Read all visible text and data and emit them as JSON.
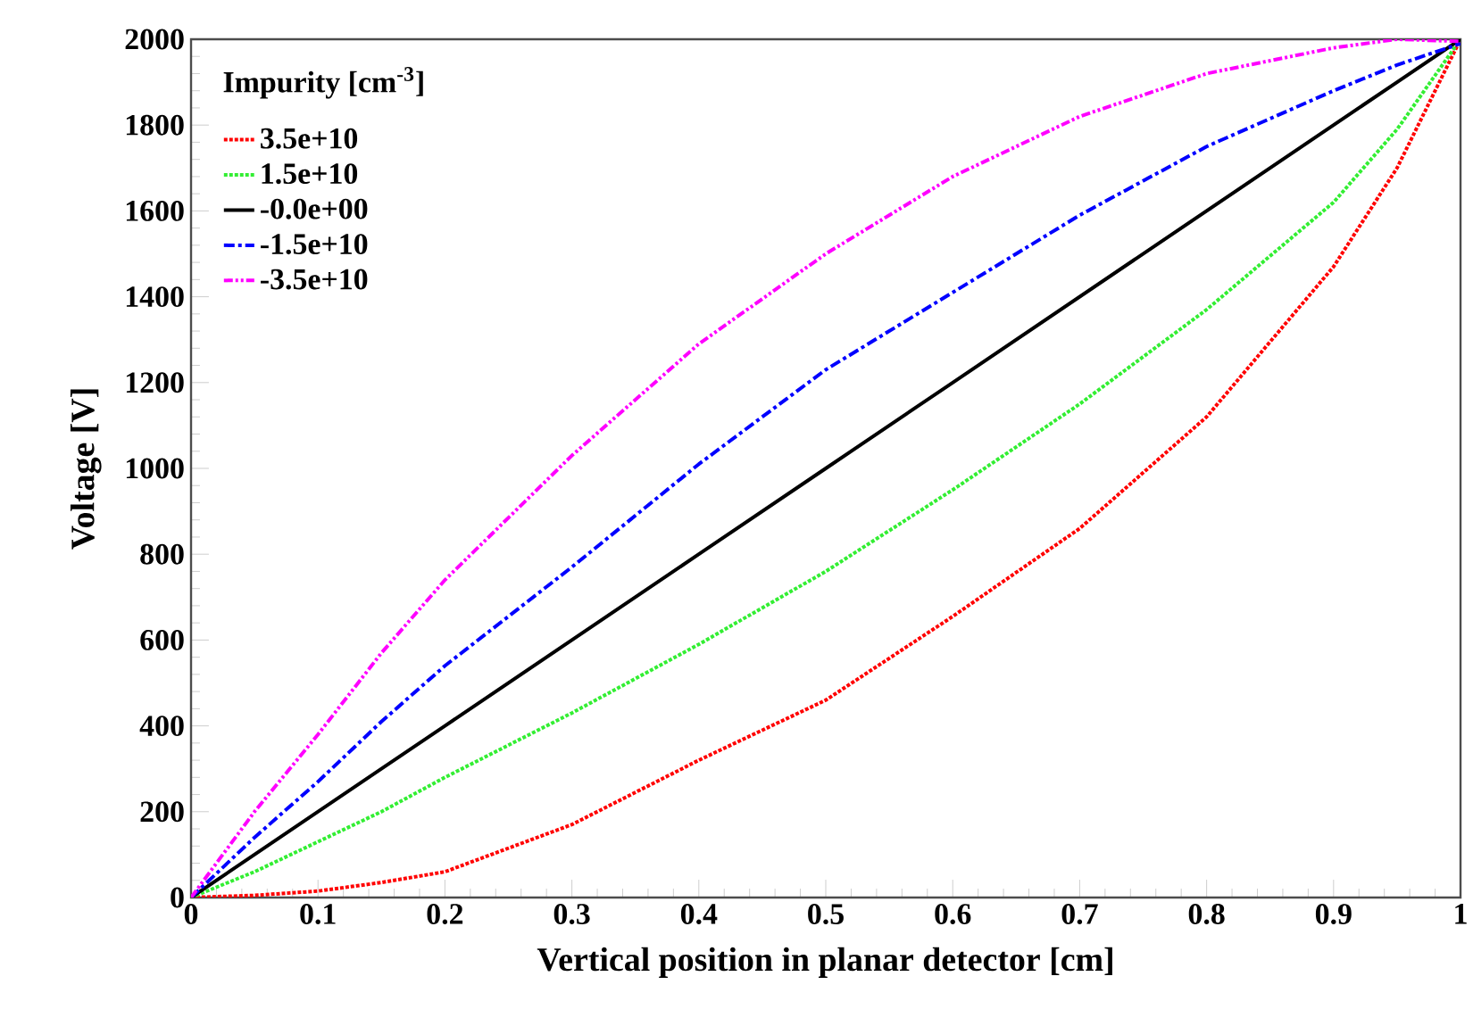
{
  "chart_data": {
    "type": "line",
    "xlabel": "Vertical position in planar detector [cm]",
    "ylabel": "Voltage [V]",
    "legend_title": "Impurity [cm$^{-3}$]",
    "legend": "top left",
    "grid": false,
    "marker": "none",
    "xlim": [
      0,
      1
    ],
    "ylim": [
      0,
      2000
    ],
    "xticks": [
      0,
      0.1,
      0.2,
      0.3,
      0.4,
      0.5,
      0.6,
      0.7,
      0.8,
      0.9,
      1
    ],
    "yticks": [
      0,
      200,
      400,
      600,
      800,
      1000,
      1200,
      1400,
      1600,
      1800,
      2000
    ],
    "x": [
      0,
      0.05,
      0.1,
      0.15,
      0.2,
      0.3,
      0.4,
      0.5,
      0.6,
      0.7,
      0.8,
      0.9,
      0.95,
      1
    ],
    "series": [
      {
        "name": "3.5e+10",
        "color": "#ff0000",
        "line_style": "dotted",
        "values": [
          0,
          5,
          15,
          35,
          60,
          170,
          320,
          460,
          655,
          860,
          1120,
          1470,
          1700,
          2000
        ]
      },
      {
        "name": "1.5e+10",
        "color": "#33ee33",
        "line_style": "dotted",
        "values": [
          0,
          60,
          130,
          200,
          280,
          430,
          590,
          760,
          950,
          1150,
          1370,
          1620,
          1790,
          2000
        ]
      },
      {
        "name": "-0.0e+00",
        "color": "#000000",
        "line_style": "solid",
        "values": [
          0,
          100,
          200,
          300,
          400,
          600,
          800,
          1000,
          1200,
          1400,
          1600,
          1800,
          1900,
          2000
        ]
      },
      {
        "name": "-1.5e+10",
        "color": "#0000ff",
        "line_style": "dashdotted",
        "values": [
          0,
          140,
          270,
          410,
          540,
          770,
          1010,
          1230,
          1410,
          1590,
          1750,
          1880,
          1940,
          1990
        ]
      },
      {
        "name": "-3.5e+10",
        "color": "#ff00ff",
        "line_style": "dashdotdotted",
        "values": [
          0,
          200,
          380,
          570,
          740,
          1030,
          1290,
          1500,
          1680,
          1820,
          1920,
          1980,
          2000,
          1995
        ]
      }
    ]
  }
}
